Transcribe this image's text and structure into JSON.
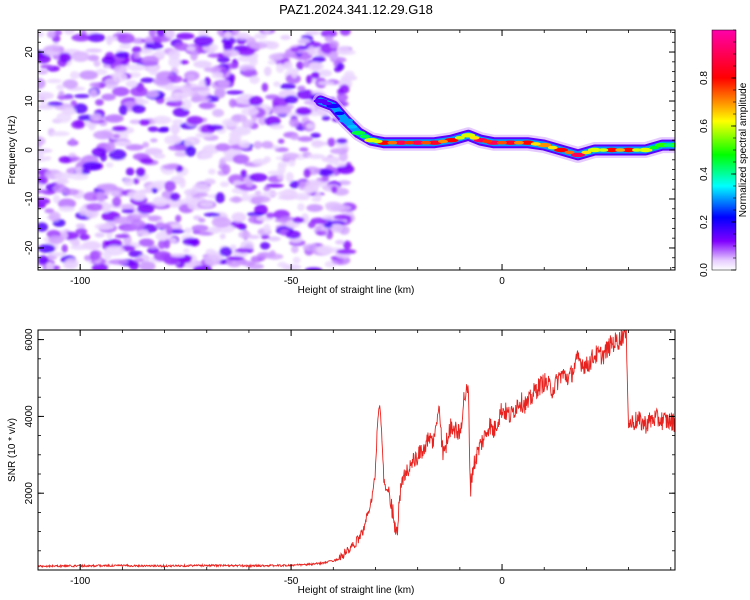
{
  "title": "PAZ1.2024.341.12.29.G18",
  "chart_data": [
    {
      "type": "heatmap",
      "xlabel": "Height of straight line (km)",
      "ylabel": "Frequency (Hz)",
      "xlim": [
        -110,
        41
      ],
      "ylim": [
        -24.5,
        24.5
      ],
      "x_ticks": [
        -100,
        -50,
        0
      ],
      "x_tick_labels": [
        "-100",
        "-50",
        "0"
      ],
      "y_ticks": [
        20,
        10,
        0,
        -10,
        -20
      ],
      "y_tick_labels": [
        "20",
        "10",
        "0",
        "-10",
        "-20"
      ],
      "colorbar": {
        "label": "Normalized spectral amplitude",
        "range": [
          0,
          1
        ],
        "ticks": [
          0.0,
          0.2,
          0.4,
          0.6,
          0.8
        ],
        "tick_labels": [
          "0.0",
          "0.2",
          "0.4",
          "0.6",
          "0.8"
        ]
      },
      "noise_region_x": [
        -110,
        -36
      ],
      "ridge": {
        "x": [
          -43,
          -40,
          -37,
          -34,
          -31,
          -28,
          -24,
          -20,
          -16,
          -12,
          -8,
          -5,
          -2,
          2,
          6,
          10,
          14,
          18,
          22,
          26,
          30,
          34,
          38,
          41
        ],
        "freq": [
          10,
          9,
          6,
          3.5,
          2,
          1.5,
          1.5,
          1.5,
          1.5,
          2,
          3,
          2,
          1.5,
          1.5,
          1.5,
          1,
          0,
          -1,
          0,
          0,
          0,
          0,
          1,
          1
        ],
        "amplitude": [
          0.15,
          0.2,
          0.3,
          0.45,
          0.6,
          0.8,
          0.9,
          0.9,
          0.85,
          0.8,
          0.6,
          0.9,
          0.9,
          0.85,
          0.8,
          0.7,
          0.8,
          0.9,
          0.6,
          0.8,
          0.8,
          0.6,
          0.5,
          0.5
        ]
      }
    },
    {
      "type": "line",
      "xlabel": "Height of straight line (km)",
      "ylabel": "SNR (10 * v/v)",
      "xlim": [
        -110,
        41
      ],
      "ylim": [
        0,
        6250
      ],
      "x_ticks": [
        -100,
        -50,
        0
      ],
      "x_tick_labels": [
        "-100",
        "-50",
        "0"
      ],
      "y_ticks": [
        2000,
        4000,
        6000
      ],
      "y_tick_labels": [
        "2000",
        "4000",
        "6000"
      ],
      "series": [
        {
          "color": "#e8221e",
          "x": [
            -110,
            -100,
            -90,
            -80,
            -70,
            -60,
            -50,
            -45,
            -42,
            -39,
            -37,
            -35,
            -33,
            -31,
            -30,
            -29.5,
            -29,
            -28.5,
            -28,
            -27,
            -26,
            -25,
            -24,
            -23,
            -22,
            -20,
            -18,
            -16,
            -15,
            -14,
            -12,
            -10,
            -9,
            -8,
            -7.5,
            -7,
            -6,
            -5,
            -4,
            -3,
            -2,
            -1,
            0,
            2,
            4,
            6,
            8,
            10,
            12,
            14,
            16,
            18,
            20,
            22,
            24,
            26,
            28,
            29,
            29.5,
            30,
            32,
            34,
            36,
            38,
            41
          ],
          "y": [
            100,
            110,
            115,
            105,
            120,
            110,
            120,
            150,
            190,
            270,
            450,
            650,
            1000,
            1800,
            2600,
            3900,
            4300,
            3500,
            2300,
            2000,
            1600,
            900,
            2100,
            2500,
            2700,
            2900,
            3300,
            3400,
            4300,
            3000,
            3800,
            3500,
            4500,
            4700,
            2100,
            2600,
            3000,
            3300,
            3500,
            3800,
            3600,
            3900,
            4200,
            4000,
            4400,
            4300,
            4700,
            4900,
            4700,
            5100,
            5000,
            5500,
            5300,
            5600,
            5600,
            5900,
            6000,
            6200,
            6000,
            3800,
            3900,
            3800,
            3950,
            3900,
            3850
          ]
        }
      ]
    }
  ]
}
